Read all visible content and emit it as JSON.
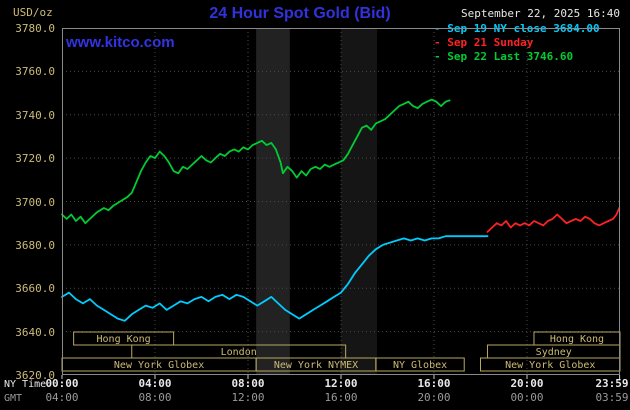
{
  "header": {
    "units_label": "USD/oz",
    "title": "24 Hour Spot Gold (Bid)",
    "datetime": "September 22, 2025 16:40",
    "watermark": "www.kitco.com"
  },
  "colors": {
    "title_blue": "#3232dd",
    "watermark_blue": "#3333e6",
    "axis_tan": "#ccbb77",
    "session_tan": "#b8a85e",
    "ny_white": "#e8e8e8",
    "gmt_gray": "#9a9a9a",
    "grid_gray": "#4a4a4a",
    "border_gray": "#8a8a8a",
    "tick_white": "#cccccc",
    "band_gray_1": "#222222",
    "band_gray_2": "#151515"
  },
  "legend": [
    {
      "marker": "-",
      "label": "Sep 19 NY close 3684.00",
      "color": "#00ccff"
    },
    {
      "marker": "-",
      "label": "Sep 21 Sunday",
      "color": "#ff2222"
    },
    {
      "marker": "-",
      "label": "Sep 22 Last 3746.60",
      "color": "#00cc33"
    }
  ],
  "axes": {
    "ny_label": "NY Time",
    "gmt_label": "GMT",
    "tick_hours": [
      0,
      4,
      8,
      12,
      16,
      20,
      23.983
    ],
    "ny_ticks": [
      "00:00",
      "04:00",
      "08:00",
      "12:00",
      "16:00",
      "20:00",
      "23:59"
    ],
    "gmt_ticks": [
      "04:00",
      "08:00",
      "12:00",
      "16:00",
      "20:00",
      "00:00",
      "03:59"
    ],
    "y_tick_values": [
      3780,
      3760,
      3740,
      3720,
      3700,
      3680,
      3660,
      3640,
      3620
    ],
    "y_tick_labels": [
      "3780.0",
      "3760.0",
      "3740.0",
      "3720.0",
      "3700.0",
      "3680.0",
      "3660.0",
      "3640.0",
      "3620.0"
    ]
  },
  "sessions": [
    {
      "label": "Hong Kong",
      "row": 0,
      "start_h": 0.5,
      "end_h": 4.8
    },
    {
      "label": "Hong Kong",
      "row": 0,
      "start_h": 20.3,
      "end_h": 24
    },
    {
      "label": "London",
      "row": 1,
      "start_h": 3.0,
      "end_h": 12.2
    },
    {
      "label": "Sydney",
      "row": 1,
      "start_h": 18.3,
      "end_h": 24
    },
    {
      "label": "New York Globex",
      "row": 2,
      "start_h": 0,
      "end_h": 8.35
    },
    {
      "label": "New York NYMEX",
      "row": 2,
      "start_h": 8.35,
      "end_h": 13.5
    },
    {
      "label": "NY Globex",
      "row": 2,
      "start_h": 13.5,
      "end_h": 17.3
    },
    {
      "label": "New York Globex",
      "row": 2,
      "start_h": 18.0,
      "end_h": 24
    }
  ],
  "chart_data": {
    "type": "line",
    "title": "24 Hour Spot Gold (Bid)",
    "xlabel": "NY time (hours 00:00-23:59)",
    "ylabel": "USD/oz",
    "xlim": [
      0,
      24
    ],
    "ylim": [
      3620,
      3780
    ],
    "grid": true,
    "legend_position": "top-right",
    "shaded_bands": [
      {
        "start_h": 8.35,
        "end_h": 9.8
      },
      {
        "start_h": 12.0,
        "end_h": 13.55
      }
    ],
    "series": [
      {
        "name": "Sep 19 NY close 3684.00",
        "color": "#00ccff",
        "points": [
          [
            0,
            3656
          ],
          [
            0.3,
            3658
          ],
          [
            0.6,
            3655
          ],
          [
            0.9,
            3653
          ],
          [
            1.2,
            3655
          ],
          [
            1.5,
            3652
          ],
          [
            1.8,
            3650
          ],
          [
            2.1,
            3648
          ],
          [
            2.4,
            3646
          ],
          [
            2.7,
            3645
          ],
          [
            3,
            3648
          ],
          [
            3.3,
            3650
          ],
          [
            3.6,
            3652
          ],
          [
            3.9,
            3651
          ],
          [
            4.2,
            3653
          ],
          [
            4.5,
            3650
          ],
          [
            4.8,
            3652
          ],
          [
            5.1,
            3654
          ],
          [
            5.4,
            3653
          ],
          [
            5.7,
            3655
          ],
          [
            6,
            3656
          ],
          [
            6.3,
            3654
          ],
          [
            6.6,
            3656
          ],
          [
            6.9,
            3657
          ],
          [
            7.2,
            3655
          ],
          [
            7.5,
            3657
          ],
          [
            7.8,
            3656
          ],
          [
            8.1,
            3654
          ],
          [
            8.4,
            3652
          ],
          [
            8.7,
            3654
          ],
          [
            9,
            3656
          ],
          [
            9.3,
            3653
          ],
          [
            9.6,
            3650
          ],
          [
            9.9,
            3648
          ],
          [
            10.2,
            3646
          ],
          [
            10.5,
            3648
          ],
          [
            10.8,
            3650
          ],
          [
            11.1,
            3652
          ],
          [
            11.4,
            3654
          ],
          [
            11.7,
            3656
          ],
          [
            12,
            3658
          ],
          [
            12.3,
            3662
          ],
          [
            12.6,
            3667
          ],
          [
            12.9,
            3671
          ],
          [
            13.2,
            3675
          ],
          [
            13.5,
            3678
          ],
          [
            13.8,
            3680
          ],
          [
            14.1,
            3681
          ],
          [
            14.4,
            3682
          ],
          [
            14.7,
            3683
          ],
          [
            15,
            3682
          ],
          [
            15.3,
            3683
          ],
          [
            15.6,
            3682
          ],
          [
            15.9,
            3683
          ],
          [
            16.2,
            3683
          ],
          [
            16.5,
            3684
          ],
          [
            17,
            3684
          ],
          [
            17.5,
            3684
          ],
          [
            18,
            3684
          ],
          [
            18.3,
            3684
          ]
        ]
      },
      {
        "name": "Sep 21 Sunday",
        "color": "#ff2222",
        "points": [
          [
            18.3,
            3686
          ],
          [
            18.5,
            3688
          ],
          [
            18.7,
            3690
          ],
          [
            18.9,
            3689
          ],
          [
            19.1,
            3691
          ],
          [
            19.3,
            3688
          ],
          [
            19.5,
            3690
          ],
          [
            19.7,
            3689
          ],
          [
            19.9,
            3690
          ],
          [
            20.1,
            3689
          ],
          [
            20.3,
            3691
          ],
          [
            20.5,
            3690
          ],
          [
            20.7,
            3689
          ],
          [
            20.9,
            3691
          ],
          [
            21.1,
            3692
          ],
          [
            21.3,
            3694
          ],
          [
            21.5,
            3692
          ],
          [
            21.7,
            3690
          ],
          [
            21.9,
            3691
          ],
          [
            22.1,
            3692
          ],
          [
            22.3,
            3691
          ],
          [
            22.5,
            3693
          ],
          [
            22.7,
            3692
          ],
          [
            22.9,
            3690
          ],
          [
            23.1,
            3689
          ],
          [
            23.3,
            3690
          ],
          [
            23.5,
            3691
          ],
          [
            23.7,
            3692
          ],
          [
            23.85,
            3694
          ],
          [
            23.97,
            3697
          ]
        ]
      },
      {
        "name": "Sep 22 Last 3746.60",
        "color": "#00cc33",
        "points": [
          [
            0,
            3694
          ],
          [
            0.2,
            3692
          ],
          [
            0.4,
            3694
          ],
          [
            0.6,
            3691
          ],
          [
            0.8,
            3693
          ],
          [
            1,
            3690
          ],
          [
            1.2,
            3692
          ],
          [
            1.5,
            3695
          ],
          [
            1.8,
            3697
          ],
          [
            2,
            3696
          ],
          [
            2.2,
            3698
          ],
          [
            2.5,
            3700
          ],
          [
            2.8,
            3702
          ],
          [
            3,
            3704
          ],
          [
            3.2,
            3709
          ],
          [
            3.4,
            3714
          ],
          [
            3.6,
            3718
          ],
          [
            3.8,
            3721
          ],
          [
            4,
            3720
          ],
          [
            4.2,
            3723
          ],
          [
            4.4,
            3721
          ],
          [
            4.6,
            3718
          ],
          [
            4.8,
            3714
          ],
          [
            5,
            3713
          ],
          [
            5.2,
            3716
          ],
          [
            5.4,
            3715
          ],
          [
            5.6,
            3717
          ],
          [
            5.8,
            3719
          ],
          [
            6,
            3721
          ],
          [
            6.2,
            3719
          ],
          [
            6.4,
            3718
          ],
          [
            6.6,
            3720
          ],
          [
            6.8,
            3722
          ],
          [
            7,
            3721
          ],
          [
            7.2,
            3723
          ],
          [
            7.4,
            3724
          ],
          [
            7.6,
            3723
          ],
          [
            7.8,
            3725
          ],
          [
            8,
            3724
          ],
          [
            8.2,
            3726
          ],
          [
            8.4,
            3727
          ],
          [
            8.6,
            3728
          ],
          [
            8.8,
            3726
          ],
          [
            9,
            3727
          ],
          [
            9.2,
            3724
          ],
          [
            9.4,
            3718
          ],
          [
            9.5,
            3713
          ],
          [
            9.7,
            3716
          ],
          [
            9.9,
            3714
          ],
          [
            10.1,
            3711
          ],
          [
            10.3,
            3714
          ],
          [
            10.5,
            3712
          ],
          [
            10.7,
            3715
          ],
          [
            10.9,
            3716
          ],
          [
            11.1,
            3715
          ],
          [
            11.3,
            3717
          ],
          [
            11.5,
            3716
          ],
          [
            11.7,
            3717
          ],
          [
            11.9,
            3718
          ],
          [
            12.1,
            3719
          ],
          [
            12.3,
            3722
          ],
          [
            12.5,
            3726
          ],
          [
            12.7,
            3730
          ],
          [
            12.9,
            3734
          ],
          [
            13.1,
            3735
          ],
          [
            13.3,
            3733
          ],
          [
            13.5,
            3736
          ],
          [
            13.7,
            3737
          ],
          [
            13.9,
            3738
          ],
          [
            14.1,
            3740
          ],
          [
            14.3,
            3742
          ],
          [
            14.5,
            3744
          ],
          [
            14.7,
            3745
          ],
          [
            14.9,
            3746
          ],
          [
            15.1,
            3744
          ],
          [
            15.3,
            3743
          ],
          [
            15.5,
            3745
          ],
          [
            15.7,
            3746
          ],
          [
            15.9,
            3747
          ],
          [
            16.1,
            3746
          ],
          [
            16.3,
            3744
          ],
          [
            16.5,
            3746
          ],
          [
            16.67,
            3746.6
          ]
        ]
      }
    ]
  }
}
